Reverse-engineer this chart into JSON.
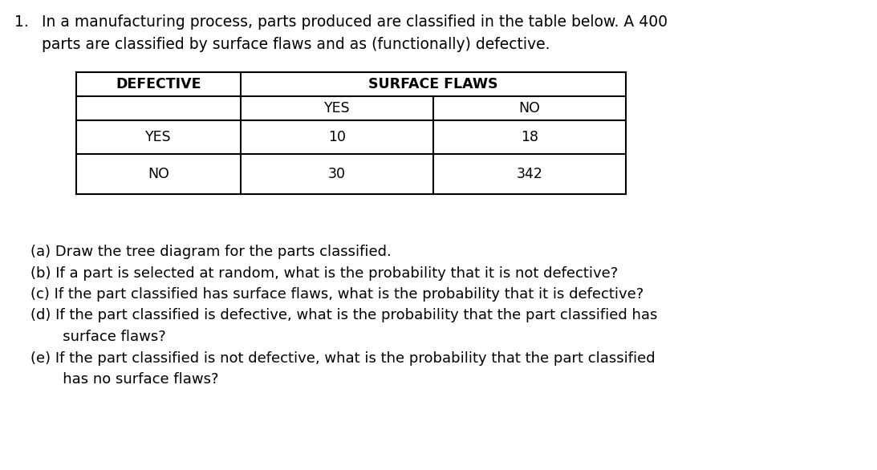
{
  "background_color": "#ffffff",
  "title_number": "1.",
  "title_line1": "  In a manufacturing process, parts produced are classified in the table below. A 400",
  "title_line2": "     parts are classified by surface flaws and as (functionally) defective.",
  "table": {
    "col1_header": "DEFECTIVE",
    "col2_header": "SURFACE FLAWS",
    "col2a_sub": "YES",
    "col2b_sub": "NO",
    "row1_label": "YES",
    "row1_val1": "10",
    "row1_val2": "18",
    "row2_label": "NO",
    "row2_val1": "30",
    "row2_val2": "342"
  },
  "questions": [
    "(a) Draw the tree diagram for the parts classified.",
    "(b) If a part is selected at random, what is the probability that it is not defective?",
    "(c) If the part classified has surface flaws, what is the probability that it is defective?",
    "(d) If the part classified is defective, what is the probability that the part classified has",
    "       surface flaws?",
    "(e) If the part classified is not defective, what is the probability that the part classified",
    "       has no surface flaws?"
  ],
  "font_size_title": 13.5,
  "font_size_table_header": 12.5,
  "font_size_table_data": 12.5,
  "font_size_questions": 13,
  "text_color": "#000000",
  "lw": 1.5
}
